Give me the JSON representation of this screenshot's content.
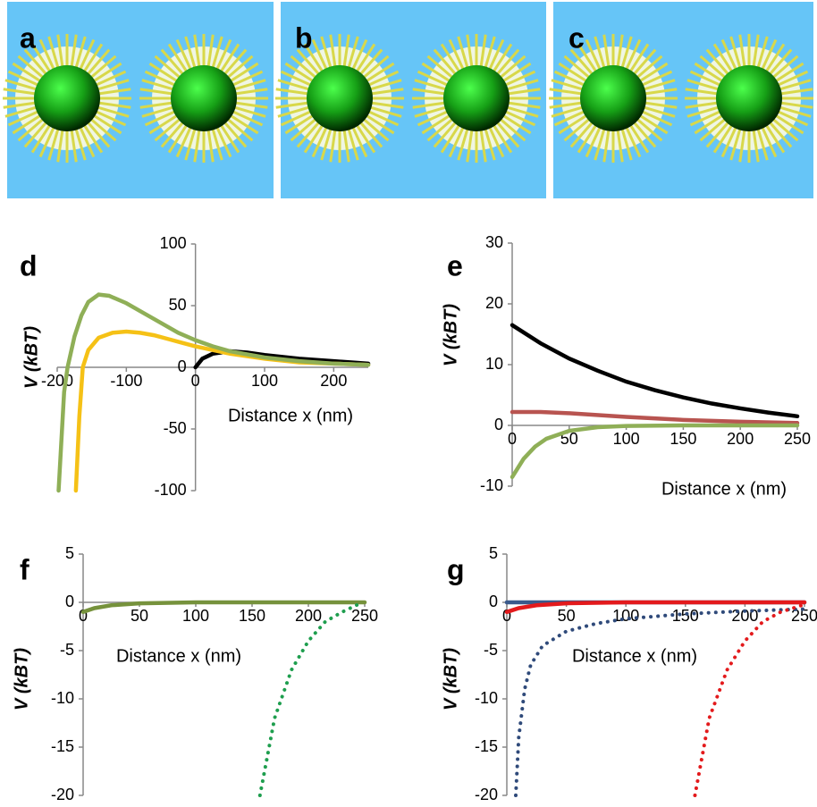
{
  "panel_labels": [
    "a",
    "b",
    "c"
  ],
  "chart_data": [
    {
      "type": "line",
      "panel": "d",
      "xlabel": "Distance x (nm)",
      "ylabel": "V (kBT)",
      "xlim": [
        -200,
        250
      ],
      "ylim": [
        -100,
        100
      ],
      "xticks": [
        -200,
        -100,
        0,
        100,
        200
      ],
      "yticks": [
        -100,
        -50,
        0,
        50,
        100
      ],
      "series": [
        {
          "color": "#000000",
          "x": [
            0,
            10,
            25,
            50,
            75,
            100,
            150,
            200,
            250
          ],
          "values": [
            0,
            7,
            11,
            13,
            12,
            10,
            7,
            5,
            3
          ]
        },
        {
          "color": "#f5c116",
          "x": [
            -173,
            -168,
            -163,
            -155,
            -140,
            -120,
            -100,
            -80,
            -60,
            -40,
            -20,
            0,
            25,
            50,
            100,
            150,
            200,
            250
          ],
          "values": [
            -100,
            -40,
            0,
            14,
            24,
            28,
            29,
            28,
            26,
            23,
            20,
            17,
            14,
            11,
            7,
            4,
            3,
            2
          ]
        },
        {
          "color": "#8faf57",
          "x": [
            -198,
            -190,
            -185,
            -175,
            -165,
            -155,
            -140,
            -125,
            -100,
            -75,
            -50,
            -25,
            0,
            25,
            50,
            100,
            150,
            200,
            250
          ],
          "values": [
            -100,
            -20,
            0,
            25,
            42,
            53,
            59,
            58,
            52,
            44,
            36,
            28,
            22,
            17,
            13,
            8,
            5,
            3,
            2
          ]
        }
      ]
    },
    {
      "type": "line",
      "panel": "e",
      "xlabel": "Distance x (nm)",
      "ylabel": "V (kBT)",
      "xlim": [
        0,
        250
      ],
      "ylim": [
        -10,
        30
      ],
      "xticks": [
        0,
        50,
        100,
        150,
        200,
        250
      ],
      "yticks": [
        -10,
        0,
        10,
        20,
        30
      ],
      "series": [
        {
          "color": "#000000",
          "x": [
            0,
            25,
            50,
            75,
            100,
            125,
            150,
            175,
            200,
            225,
            250
          ],
          "values": [
            16.5,
            13.5,
            11,
            9,
            7.2,
            5.8,
            4.6,
            3.6,
            2.8,
            2.1,
            1.5
          ]
        },
        {
          "color": "#b85450",
          "x": [
            0,
            25,
            50,
            100,
            150,
            200,
            250
          ],
          "values": [
            2.2,
            2.2,
            2,
            1.4,
            0.9,
            0.6,
            0.4
          ]
        },
        {
          "color": "#8faf57",
          "x": [
            0,
            10,
            20,
            30,
            50,
            75,
            100,
            150,
            250
          ],
          "values": [
            -8.5,
            -5.5,
            -3.5,
            -2.2,
            -0.9,
            -0.3,
            -0.1,
            0,
            0
          ]
        }
      ]
    },
    {
      "type": "line",
      "panel": "f",
      "xlabel": "Distance x (nm)",
      "ylabel": "V (kBT)",
      "xlim": [
        0,
        250
      ],
      "ylim": [
        -20,
        5
      ],
      "xticks": [
        0,
        50,
        100,
        150,
        200,
        250
      ],
      "yticks": [
        -20,
        -15,
        -10,
        -5,
        0,
        5
      ],
      "series": [
        {
          "color": "#76923c",
          "x": [
            0,
            10,
            25,
            50,
            100,
            250
          ],
          "values": [
            -1,
            -0.6,
            -0.3,
            -0.1,
            0,
            0
          ]
        },
        {
          "color": "#1e9e4e",
          "dotted": true,
          "x": [
            157,
            170,
            185,
            200,
            215,
            230,
            248
          ],
          "values": [
            -20,
            -12,
            -7,
            -4,
            -2,
            -1,
            0
          ]
        }
      ]
    },
    {
      "type": "line",
      "panel": "g",
      "xlabel": "Distance x (nm)",
      "ylabel": "V (kBT)",
      "xlim": [
        0,
        250
      ],
      "ylim": [
        -20,
        5
      ],
      "xticks": [
        0,
        50,
        100,
        150,
        200,
        250
      ],
      "yticks": [
        -20,
        -15,
        -10,
        -5,
        0,
        5
      ],
      "series": [
        {
          "color": "#3a5a8c",
          "x": [
            0,
            250
          ],
          "values": [
            0,
            0
          ]
        },
        {
          "color": "#e31a1c",
          "x": [
            0,
            10,
            25,
            50,
            100,
            250
          ],
          "values": [
            -1,
            -0.6,
            -0.3,
            -0.1,
            0,
            0
          ]
        },
        {
          "color": "#2f4a7a",
          "dotted": true,
          "x": [
            7.5,
            10,
            15,
            20,
            30,
            50,
            75,
            100,
            150,
            200,
            250
          ],
          "values": [
            -20,
            -14,
            -9,
            -6.5,
            -4.5,
            -3,
            -2.2,
            -1.7,
            -1.2,
            -0.9,
            -0.7
          ]
        },
        {
          "color": "#e31a1c",
          "dotted": true,
          "x": [
            158,
            170,
            185,
            200,
            215,
            230,
            248
          ],
          "values": [
            -20,
            -12,
            -7,
            -4,
            -2,
            -1,
            -0.3
          ]
        }
      ]
    }
  ]
}
